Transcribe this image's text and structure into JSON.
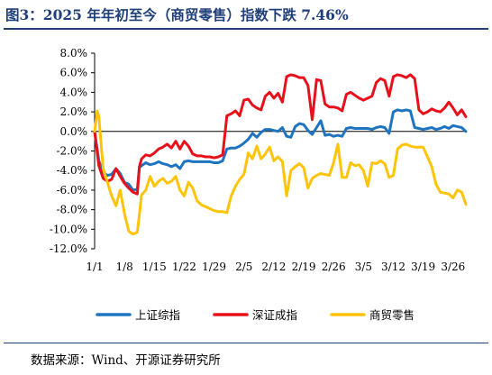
{
  "header": {
    "title": "图3：2025 年年初至今（商贸零售）指数下跌 7.46%"
  },
  "footer": {
    "source": "数据来源：Wind、开源证券研究所"
  },
  "colors": {
    "title": "#1f3f78",
    "上证综指": "#1f74c0",
    "深证成指": "#e8101a",
    "商贸零售": "#fec40a"
  },
  "chart_data": {
    "type": "line",
    "title": "",
    "xlabel": "",
    "ylabel": "",
    "y_tick_labels": [
      "8.0%",
      "6.0%",
      "4.0%",
      "2.0%",
      "0.0%",
      "-2.0%",
      "-4.0%",
      "-6.0%",
      "-8.0%",
      "-10.0%",
      "-12.0%"
    ],
    "ylim": [
      -12,
      8
    ],
    "x_tick_labels": [
      "1/1",
      "1/8",
      "1/15",
      "1/22",
      "1/29",
      "2/5",
      "2/12",
      "2/19",
      "2/26",
      "3/5",
      "3/12",
      "3/19",
      "3/26"
    ],
    "x_tick_days": [
      1,
      8,
      15,
      22,
      29,
      36,
      43,
      50,
      57,
      64,
      71,
      78,
      85
    ],
    "x_axis_at": 0,
    "grid": false,
    "legend_position": "bottom",
    "series": [
      {
        "name": "上证综指",
        "points": [
          [
            1,
            0
          ],
          [
            2,
            -3.0
          ],
          [
            3,
            -4.2
          ],
          [
            4,
            -4.5
          ],
          [
            5,
            -4.4
          ],
          [
            6,
            -3.8
          ],
          [
            7,
            -4.3
          ],
          [
            8,
            -5.2
          ],
          [
            9,
            -5.4
          ],
          [
            10,
            -6.0
          ],
          [
            11,
            -5.9
          ],
          [
            11.5,
            -3.7
          ],
          [
            12,
            -3.5
          ],
          [
            13,
            -3.2
          ],
          [
            14,
            -3.4
          ],
          [
            15,
            -3.3
          ],
          [
            16,
            -3.1
          ],
          [
            17,
            -3.3
          ],
          [
            18,
            -3.4
          ],
          [
            19,
            -3.6
          ],
          [
            20,
            -3.4
          ],
          [
            21,
            -3.8
          ],
          [
            22,
            -3.1
          ],
          [
            23,
            -3.0
          ],
          [
            24,
            -3.1
          ],
          [
            25,
            -3.1
          ],
          [
            26,
            -3.1
          ],
          [
            27,
            -3.1
          ],
          [
            28,
            -3.1
          ],
          [
            29,
            -3.2
          ],
          [
            30,
            -3.2
          ],
          [
            31,
            -3.0
          ],
          [
            32,
            -1.8
          ],
          [
            33,
            -1.7
          ],
          [
            34,
            -1.7
          ],
          [
            35,
            -1.5
          ],
          [
            36,
            -1.2
          ],
          [
            37,
            -0.8
          ],
          [
            38,
            -0.2
          ],
          [
            39,
            -0.6
          ],
          [
            40,
            -0.1
          ],
          [
            41,
            0.2
          ],
          [
            42,
            0.2
          ],
          [
            43,
            0.1
          ],
          [
            44,
            0.0
          ],
          [
            45,
            0.4
          ],
          [
            46,
            -0.5
          ],
          [
            47,
            -0.6
          ],
          [
            48,
            0.5
          ],
          [
            49,
            0.8
          ],
          [
            50,
            0.7
          ],
          [
            51,
            0.1
          ],
          [
            52,
            -0.3
          ],
          [
            53,
            0.4
          ],
          [
            54,
            1.1
          ],
          [
            55,
            -0.4
          ],
          [
            56,
            -0.3
          ],
          [
            57,
            -0.5
          ],
          [
            58,
            -0.4
          ],
          [
            59,
            -0.5
          ],
          [
            60,
            0.3
          ],
          [
            61,
            0.4
          ],
          [
            62,
            0.3
          ],
          [
            63,
            0.3
          ],
          [
            64,
            0.3
          ],
          [
            65,
            0.3
          ],
          [
            66,
            0.2
          ],
          [
            67,
            0.4
          ],
          [
            68,
            0.5
          ],
          [
            69,
            0.4
          ],
          [
            70,
            -0.2
          ],
          [
            71,
            2.0
          ],
          [
            72,
            2.2
          ],
          [
            73,
            2.1
          ],
          [
            74,
            2.2
          ],
          [
            75,
            2.1
          ],
          [
            76,
            0.4
          ],
          [
            77,
            0.3
          ],
          [
            78,
            0.2
          ],
          [
            79,
            0.3
          ],
          [
            80,
            0.4
          ],
          [
            81,
            0.2
          ],
          [
            82,
            0.3
          ],
          [
            83,
            0.5
          ],
          [
            84,
            0.3
          ],
          [
            85,
            0.6
          ],
          [
            86,
            0.5
          ],
          [
            87,
            0.4
          ],
          [
            88,
            0.0
          ]
        ]
      },
      {
        "name": "深证成指",
        "points": [
          [
            1,
            0
          ],
          [
            2,
            -3.5
          ],
          [
            3,
            -4.8
          ],
          [
            4,
            -5.1
          ],
          [
            5,
            -4.9
          ],
          [
            6,
            -3.8
          ],
          [
            7,
            -4.6
          ],
          [
            8,
            -5.3
          ],
          [
            9,
            -5.8
          ],
          [
            10,
            -6.2
          ],
          [
            11,
            -6.4
          ],
          [
            11.5,
            -3.6
          ],
          [
            12,
            -2.8
          ],
          [
            13,
            -2.4
          ],
          [
            14,
            -2.5
          ],
          [
            15,
            -2.2
          ],
          [
            16,
            -1.8
          ],
          [
            17,
            -1.6
          ],
          [
            18,
            -1.3
          ],
          [
            19,
            -1.7
          ],
          [
            20,
            -1.0
          ],
          [
            21,
            -1.8
          ],
          [
            22,
            -1.0
          ],
          [
            23,
            -1.5
          ],
          [
            24,
            -2.3
          ],
          [
            25,
            -2.5
          ],
          [
            26,
            -2.5
          ],
          [
            27,
            -2.6
          ],
          [
            28,
            -2.6
          ],
          [
            29,
            -2.7
          ],
          [
            30,
            -2.6
          ],
          [
            31,
            -2.4
          ],
          [
            32,
            1.6
          ],
          [
            33,
            1.8
          ],
          [
            34,
            2.1
          ],
          [
            35,
            1.6
          ],
          [
            36,
            3.2
          ],
          [
            37,
            3.3
          ],
          [
            38,
            2.7
          ],
          [
            39,
            2.4
          ],
          [
            40,
            2.2
          ],
          [
            41,
            3.6
          ],
          [
            42,
            4.0
          ],
          [
            43,
            3.4
          ],
          [
            44,
            3.9
          ],
          [
            45,
            3.0
          ],
          [
            46,
            5.6
          ],
          [
            47,
            5.8
          ],
          [
            48,
            5.7
          ],
          [
            49,
            5.5
          ],
          [
            50,
            5.5
          ],
          [
            51,
            4.7
          ],
          [
            52,
            1.2
          ],
          [
            53,
            5.3
          ],
          [
            54,
            5.2
          ],
          [
            55,
            2.8
          ],
          [
            56,
            2.5
          ],
          [
            57,
            2.5
          ],
          [
            58,
            2.4
          ],
          [
            59,
            2.1
          ],
          [
            60,
            3.8
          ],
          [
            61,
            4.0
          ],
          [
            62,
            3.7
          ],
          [
            63,
            3.4
          ],
          [
            64,
            3.2
          ],
          [
            65,
            3.4
          ],
          [
            66,
            3.6
          ],
          [
            67,
            5.0
          ],
          [
            68,
            5.4
          ],
          [
            69,
            5.2
          ],
          [
            70,
            3.6
          ],
          [
            71,
            5.6
          ],
          [
            72,
            5.8
          ],
          [
            73,
            5.7
          ],
          [
            74,
            5.5
          ],
          [
            75,
            5.8
          ],
          [
            76,
            5.4
          ],
          [
            77,
            2.2
          ],
          [
            78,
            1.8
          ],
          [
            79,
            2.0
          ],
          [
            80,
            2.3
          ],
          [
            81,
            2.1
          ],
          [
            82,
            2.0
          ],
          [
            83,
            2.4
          ],
          [
            84,
            3.0
          ],
          [
            85,
            2.4
          ],
          [
            86,
            1.7
          ],
          [
            87,
            2.2
          ],
          [
            88,
            1.5
          ]
        ]
      },
      {
        "name": "商贸零售",
        "points": [
          [
            1,
            0
          ],
          [
            1.3,
            1.0
          ],
          [
            1.6,
            2.1
          ],
          [
            2,
            1.5
          ],
          [
            3,
            -3.8
          ],
          [
            4,
            -5.2
          ],
          [
            5,
            -6.6
          ],
          [
            6,
            -7.6
          ],
          [
            7,
            -6.0
          ],
          [
            8,
            -8.4
          ],
          [
            9,
            -10.2
          ],
          [
            10,
            -10.5
          ],
          [
            11,
            -10.3
          ],
          [
            11.5,
            -8.5
          ],
          [
            12,
            -6.5
          ],
          [
            13,
            -6.0
          ],
          [
            14,
            -4.6
          ],
          [
            15,
            -5.6
          ],
          [
            16,
            -5.1
          ],
          [
            17,
            -4.8
          ],
          [
            18,
            -5.3
          ],
          [
            19,
            -5.1
          ],
          [
            20,
            -4.6
          ],
          [
            21,
            -6.0
          ],
          [
            22,
            -6.6
          ],
          [
            23,
            -5.2
          ],
          [
            24,
            -5.8
          ],
          [
            25,
            -7.1
          ],
          [
            26,
            -7.5
          ],
          [
            27,
            -7.7
          ],
          [
            28,
            -7.9
          ],
          [
            29,
            -8.1
          ],
          [
            30,
            -8.2
          ],
          [
            31,
            -8.2
          ],
          [
            32,
            -8.3
          ],
          [
            33,
            -6.6
          ],
          [
            34,
            -5.6
          ],
          [
            35,
            -4.9
          ],
          [
            36,
            -4.4
          ],
          [
            37,
            -2.2
          ],
          [
            38,
            -2.8
          ],
          [
            39,
            -1.5
          ],
          [
            40,
            -2.8
          ],
          [
            41,
            -2.3
          ],
          [
            42,
            -1.6
          ],
          [
            43,
            -3.0
          ],
          [
            44,
            -2.6
          ],
          [
            45,
            -3.1
          ],
          [
            46,
            -6.6
          ],
          [
            47,
            -4.0
          ],
          [
            48,
            -3.6
          ],
          [
            49,
            -3.3
          ],
          [
            50,
            -3.7
          ],
          [
            51,
            -5.8
          ],
          [
            52,
            -4.8
          ],
          [
            53,
            -4.5
          ],
          [
            54,
            -4.3
          ],
          [
            55,
            -4.4
          ],
          [
            56,
            -4.5
          ],
          [
            57,
            -3.2
          ],
          [
            58,
            -1.3
          ],
          [
            59,
            -4.7
          ],
          [
            60,
            -4.7
          ],
          [
            61,
            -3.2
          ],
          [
            62,
            -3.5
          ],
          [
            63,
            -3.4
          ],
          [
            64,
            -4.0
          ],
          [
            65,
            -5.6
          ],
          [
            66,
            -3.2
          ],
          [
            67,
            -3.3
          ],
          [
            68,
            -3.0
          ],
          [
            69,
            -3.3
          ],
          [
            70,
            -4.7
          ],
          [
            71,
            -4.5
          ],
          [
            72,
            -1.8
          ],
          [
            73,
            -1.4
          ],
          [
            74,
            -1.3
          ],
          [
            75,
            -1.5
          ],
          [
            76,
            -1.6
          ],
          [
            77,
            -1.6
          ],
          [
            78,
            -1.6
          ],
          [
            79,
            -2.6
          ],
          [
            80,
            -3.6
          ],
          [
            81,
            -5.4
          ],
          [
            82,
            -6.2
          ],
          [
            83,
            -6.3
          ],
          [
            84,
            -6.4
          ],
          [
            85,
            -6.8
          ],
          [
            86,
            -6.0
          ],
          [
            87,
            -6.2
          ],
          [
            88,
            -7.46
          ]
        ]
      }
    ]
  }
}
